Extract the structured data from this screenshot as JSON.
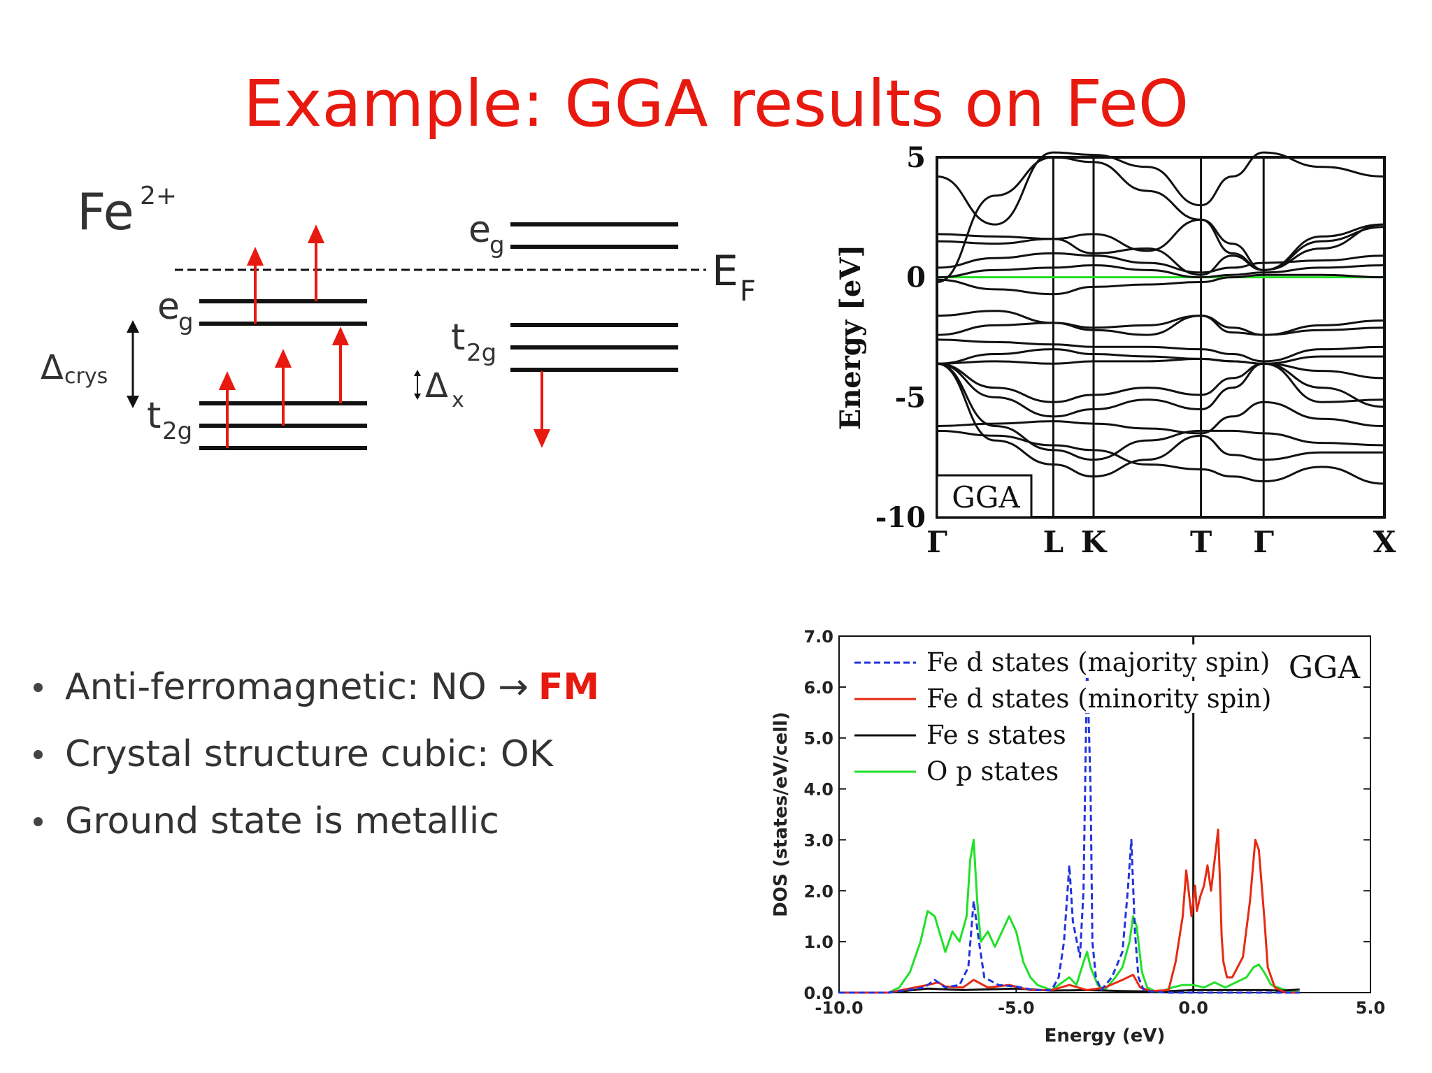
{
  "title": "Example: GGA results on FeO",
  "level_diagram": {
    "ion_label": "Fe",
    "ion_charge": "2+",
    "eg_label": "e",
    "eg_sub": "g",
    "t2g_label": "t",
    "t2g_sub": "2g",
    "crys_label": "Δ",
    "crys_sub": "crys",
    "x_label": "Δ",
    "x_sub": "x",
    "fermi_label": "E",
    "fermi_sub": "F",
    "spin_up_color": "#e8190f",
    "spin_down_color": "#e8190f"
  },
  "bullets": {
    "item1_text": "Anti-ferromagnetic: NO →",
    "item1_emph": "FM",
    "item2": "Crystal structure cubic: OK",
    "item3": "Ground state is metallic"
  },
  "chart_data": [
    {
      "type": "line",
      "ylabel": "Energy [eV]",
      "ylim": [
        -10,
        5
      ],
      "yticks": [
        "5",
        "0",
        "-5",
        "-10"
      ],
      "kpoints": [
        "Γ",
        "L",
        "K",
        "T",
        "Γ",
        "X"
      ],
      "kpoint_positions": [
        0,
        0.26,
        0.35,
        0.59,
        0.73,
        1.0
      ],
      "inset_label": "GGA",
      "fermi_line_color": "#22dd22",
      "series": [
        {
          "x": [
            0,
            0.13,
            0.26,
            0.35,
            0.47,
            0.59,
            0.66,
            0.73,
            0.86,
            1.0
          ],
          "values": [
            4.2,
            2.2,
            5.2,
            5.1,
            4.6,
            3.0,
            4.2,
            5.2,
            4.6,
            4.2
          ]
        },
        {
          "x": [
            0,
            0.13,
            0.26,
            0.35,
            0.47,
            0.59,
            0.66,
            0.73,
            0.86,
            1.0
          ],
          "values": [
            -0.2,
            3.4,
            5.0,
            4.8,
            3.6,
            2.4,
            1.0,
            0.3,
            1.5,
            2.1
          ]
        },
        {
          "x": [
            0,
            0.13,
            0.26,
            0.35,
            0.47,
            0.59,
            0.66,
            0.73,
            0.86,
            1.0
          ],
          "values": [
            1.8,
            1.7,
            1.6,
            1.8,
            1.1,
            2.4,
            1.4,
            0.3,
            1.2,
            2.2
          ]
        },
        {
          "x": [
            0,
            0.13,
            0.26,
            0.35,
            0.47,
            0.59,
            0.66,
            0.73,
            0.86,
            1.0
          ],
          "values": [
            1.5,
            1.4,
            1.6,
            1.0,
            1.2,
            0.1,
            0.9,
            0.3,
            1.7,
            2.2
          ]
        },
        {
          "x": [
            0,
            0.13,
            0.26,
            0.35,
            0.47,
            0.59,
            0.66,
            0.73,
            0.86,
            1.0
          ],
          "values": [
            0.4,
            0.8,
            1.0,
            0.9,
            0.6,
            0.2,
            0.4,
            0.6,
            0.7,
            0.9
          ]
        },
        {
          "x": [
            0,
            0.13,
            0.26,
            0.35,
            0.47,
            0.59,
            0.66,
            0.73,
            0.86,
            1.0
          ],
          "values": [
            0.0,
            0.3,
            0.4,
            0.5,
            0.3,
            0.0,
            0.1,
            0.2,
            0.4,
            0.5
          ]
        },
        {
          "x": [
            0,
            0.13,
            0.26,
            0.35,
            0.47,
            0.59,
            0.66,
            0.73,
            0.86,
            1.0
          ],
          "values": [
            -0.1,
            -0.5,
            -0.7,
            -0.4,
            -0.3,
            -0.2,
            0.0,
            0.1,
            0.1,
            0.0
          ]
        },
        {
          "x": [
            0,
            0.13,
            0.26,
            0.35,
            0.47,
            0.59,
            0.66,
            0.73,
            0.86,
            1.0
          ],
          "values": [
            -1.6,
            -1.4,
            -1.9,
            -2.1,
            -2.0,
            -1.6,
            -2.3,
            -2.4,
            -2.0,
            -1.8
          ]
        },
        {
          "x": [
            0,
            0.13,
            0.26,
            0.35,
            0.47,
            0.59,
            0.66,
            0.73,
            0.86,
            1.0
          ],
          "values": [
            -2.4,
            -2.0,
            -1.9,
            -2.2,
            -2.4,
            -1.6,
            -2.1,
            -2.4,
            -2.2,
            -2.1
          ]
        },
        {
          "x": [
            0,
            0.13,
            0.26,
            0.35,
            0.47,
            0.59,
            0.66,
            0.73,
            0.86,
            1.0
          ],
          "values": [
            -2.6,
            -2.7,
            -2.8,
            -2.9,
            -2.9,
            -3.0,
            -3.2,
            -3.5,
            -3.0,
            -2.9
          ]
        },
        {
          "x": [
            0,
            0.13,
            0.26,
            0.35,
            0.47,
            0.59,
            0.66,
            0.73,
            0.86,
            1.0
          ],
          "values": [
            -3.6,
            -3.2,
            -3.0,
            -3.2,
            -3.3,
            -3.4,
            -3.5,
            -3.6,
            -3.3,
            -3.3
          ]
        },
        {
          "x": [
            0,
            0.13,
            0.26,
            0.35,
            0.47,
            0.59,
            0.66,
            0.73,
            0.86,
            1.0
          ],
          "values": [
            -3.6,
            -3.5,
            -3.6,
            -3.5,
            -3.5,
            -3.4,
            -3.5,
            -3.6,
            -3.9,
            -4.2
          ]
        },
        {
          "x": [
            0,
            0.13,
            0.26,
            0.35,
            0.47,
            0.59,
            0.66,
            0.73,
            0.86,
            1.0
          ],
          "values": [
            -3.6,
            -4.6,
            -5.2,
            -4.9,
            -4.6,
            -4.9,
            -4.2,
            -3.6,
            -4.6,
            -5.4
          ]
        },
        {
          "x": [
            0,
            0.13,
            0.26,
            0.35,
            0.47,
            0.59,
            0.66,
            0.73,
            0.86,
            1.0
          ],
          "values": [
            -3.6,
            -5.0,
            -5.8,
            -5.5,
            -5.1,
            -5.5,
            -4.6,
            -3.6,
            -5.2,
            -5.1
          ]
        },
        {
          "x": [
            0,
            0.13,
            0.26,
            0.35,
            0.47,
            0.59,
            0.66,
            0.73,
            0.86,
            1.0
          ],
          "values": [
            -6.2,
            -6.1,
            -6.0,
            -6.1,
            -6.3,
            -6.5,
            -5.8,
            -5.2,
            -5.9,
            -6.2
          ]
        },
        {
          "x": [
            0,
            0.13,
            0.26,
            0.35,
            0.47,
            0.59,
            0.66,
            0.73,
            0.86,
            1.0
          ],
          "values": [
            -3.6,
            -6.2,
            -7.2,
            -7.6,
            -6.8,
            -6.4,
            -6.4,
            -6.5,
            -6.9,
            -7.0
          ]
        },
        {
          "x": [
            0,
            0.13,
            0.26,
            0.35,
            0.47,
            0.59,
            0.66,
            0.73,
            0.86,
            1.0
          ],
          "values": [
            -3.6,
            -6.8,
            -7.8,
            -8.3,
            -7.6,
            -6.6,
            -7.4,
            -7.6,
            -7.3,
            -7.3
          ]
        },
        {
          "x": [
            0,
            0.13,
            0.26,
            0.35,
            0.47,
            0.59,
            0.66,
            0.73,
            0.86,
            1.0
          ],
          "values": [
            -6.4,
            -6.6,
            -7.0,
            -7.2,
            -7.8,
            -8.0,
            -8.3,
            -8.5,
            -7.9,
            -8.6
          ]
        }
      ]
    },
    {
      "type": "line",
      "title": "GGA",
      "xlabel": "Energy (eV)",
      "ylabel": "DOS (states/eV/cell)",
      "xlim": [
        -10,
        5
      ],
      "ylim": [
        0,
        7
      ],
      "xticks": [
        "-10.0",
        "-5.0",
        "0.0",
        "5.0"
      ],
      "yticks": [
        "0.0",
        "1.0",
        "2.0",
        "3.0",
        "4.0",
        "5.0",
        "6.0",
        "7.0"
      ],
      "legend_position": "top-left",
      "series": [
        {
          "name": "Fe d states (majority spin)",
          "color": "#2233dd",
          "dashed": true,
          "x": [
            -10,
            -8.6,
            -7.6,
            -7.3,
            -7.0,
            -6.6,
            -6.35,
            -6.2,
            -6.05,
            -5.9,
            -5.5,
            -5.0,
            -4.5,
            -4.0,
            -3.8,
            -3.65,
            -3.5,
            -3.4,
            -3.2,
            -3.1,
            -3.0,
            -2.9,
            -2.85,
            -2.75,
            -2.6,
            -2.3,
            -2.0,
            -1.85,
            -1.75,
            -1.65,
            -1.55,
            -1.4,
            -1.2,
            -0.8,
            0,
            3
          ],
          "values": [
            0,
            0,
            0.1,
            0.25,
            0.1,
            0.15,
            0.5,
            1.8,
            1.0,
            0.3,
            0.15,
            0.12,
            0.05,
            0.05,
            0.3,
            1.0,
            2.5,
            1.4,
            0.7,
            2.0,
            6.5,
            4.0,
            1.0,
            0.3,
            0.05,
            0.3,
            0.8,
            2.0,
            3.0,
            1.2,
            0.3,
            0.05,
            0.02,
            0,
            0,
            0
          ]
        },
        {
          "name": "Fe d states (minority spin)",
          "color": "#e62a12",
          "dashed": false,
          "x": [
            -10,
            -8.6,
            -7.5,
            -7.2,
            -7.0,
            -6.5,
            -6.2,
            -5.8,
            -5.2,
            -4.6,
            -4.0,
            -3.5,
            -3.0,
            -2.5,
            -2.0,
            -1.7,
            -1.5,
            -1.2,
            -0.7,
            -0.5,
            -0.3,
            -0.2,
            -0.05,
            0.05,
            0.1,
            0.2,
            0.3,
            0.4,
            0.5,
            0.6,
            0.7,
            0.75,
            0.8,
            0.85,
            0.95,
            1.1,
            1.4,
            1.6,
            1.75,
            1.85,
            2.0,
            2.1,
            2.3,
            2.6,
            3.0
          ],
          "values": [
            0,
            0,
            0.15,
            0.2,
            0.12,
            0.1,
            0.25,
            0.1,
            0.15,
            0.05,
            0.05,
            0.15,
            0.05,
            0.1,
            0.25,
            0.35,
            0.1,
            0.03,
            0.05,
            0.6,
            1.5,
            2.4,
            1.5,
            2.1,
            1.6,
            1.9,
            2.1,
            2.5,
            2.0,
            2.6,
            3.2,
            2.2,
            1.1,
            0.6,
            0.3,
            0.3,
            0.7,
            1.8,
            3.0,
            2.8,
            1.5,
            0.5,
            0.1,
            0,
            0
          ]
        },
        {
          "name": "Fe s states",
          "color": "#111111",
          "dashed": false,
          "x": [
            -10,
            -8.6,
            -7.5,
            -6.5,
            -6.0,
            -5.0,
            -4.0,
            -3.0,
            -2.0,
            -1.0,
            0,
            1.0,
            2.0,
            2.5,
            3.0
          ],
          "values": [
            0,
            0,
            0.08,
            0.05,
            0.06,
            0.08,
            0.04,
            0.05,
            0.03,
            0.02,
            0.05,
            0.05,
            0.05,
            0.04,
            0.06
          ]
        },
        {
          "name": "O p states",
          "color": "#22e02a",
          "dashed": false,
          "x": [
            -10,
            -8.6,
            -8.3,
            -8.0,
            -7.7,
            -7.5,
            -7.3,
            -7.0,
            -6.8,
            -6.6,
            -6.4,
            -6.3,
            -6.2,
            -6.1,
            -6.0,
            -5.8,
            -5.6,
            -5.4,
            -5.2,
            -5.0,
            -4.8,
            -4.6,
            -4.4,
            -4.0,
            -3.7,
            -3.5,
            -3.3,
            -3.1,
            -3.0,
            -2.9,
            -2.7,
            -2.5,
            -2.2,
            -2.0,
            -1.8,
            -1.7,
            -1.6,
            -1.45,
            -1.3,
            -1.0,
            -0.6,
            -0.3,
            0,
            0.3,
            0.6,
            0.9,
            1.2,
            1.5,
            1.7,
            1.85,
            2.0,
            2.2,
            2.6,
            3.0
          ],
          "values": [
            0,
            0,
            0.1,
            0.4,
            1.0,
            1.6,
            1.5,
            0.8,
            1.2,
            1.0,
            1.5,
            2.6,
            3.0,
            1.8,
            1.0,
            1.2,
            0.9,
            1.2,
            1.5,
            1.2,
            0.6,
            0.3,
            0.15,
            0.05,
            0.2,
            0.3,
            0.15,
            0.6,
            0.8,
            0.5,
            0.15,
            0.05,
            0.3,
            0.5,
            1.0,
            1.5,
            1.3,
            0.4,
            0.1,
            0.0,
            0.1,
            0.15,
            0.15,
            0.1,
            0.2,
            0.1,
            0.2,
            0.3,
            0.5,
            0.55,
            0.4,
            0.15,
            0.05,
            0.0
          ]
        }
      ]
    }
  ]
}
